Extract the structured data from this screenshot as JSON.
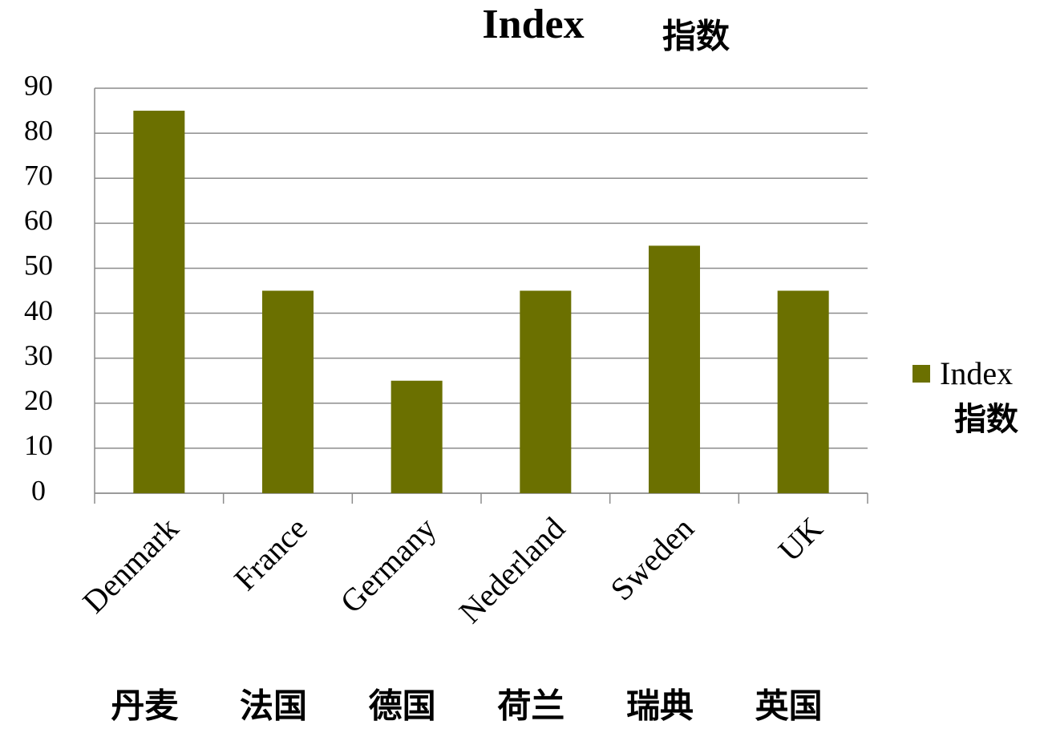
{
  "chart_data": {
    "type": "bar",
    "title": "Index",
    "title_annotation": "指数",
    "categories": [
      "Denmark",
      "France",
      "Germany",
      "Nederland",
      "Sweden",
      "UK"
    ],
    "category_annotations": [
      "丹麦",
      "法国",
      "德国",
      "荷兰",
      "瑞典",
      "英国"
    ],
    "series": [
      {
        "name": "Index",
        "color": "#6b7000",
        "values": [
          85,
          45,
          25,
          45,
          55,
          45
        ]
      }
    ],
    "legend_annotation": "指数",
    "ylim": [
      0,
      90
    ],
    "yticks": [
      0,
      10,
      20,
      30,
      40,
      50,
      60,
      70,
      80,
      90
    ],
    "grid": true,
    "legend": "right"
  }
}
